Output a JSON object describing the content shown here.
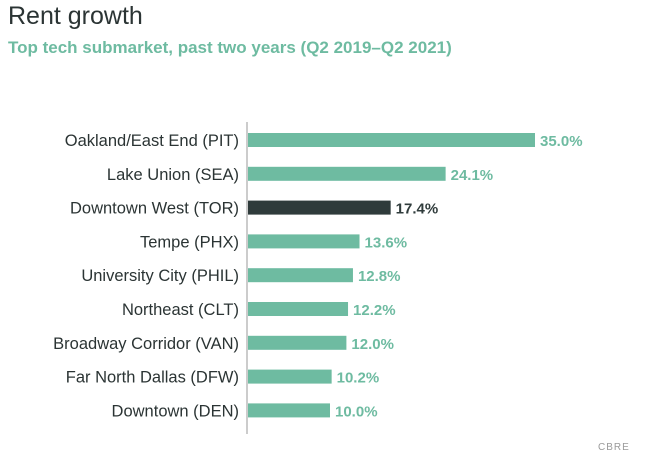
{
  "chart_data": {
    "type": "bar",
    "orientation": "horizontal",
    "title": "Rent growth",
    "subtitle": "Top tech submarket, past two years (Q2 2019–Q2 2021)",
    "categories": [
      "Oakland/East End (PIT)",
      "Lake Union (SEA)",
      "Downtown West (TOR)",
      "Tempe (PHX)",
      "University City (PHIL)",
      "Northeast (CLT)",
      "Broadway Corridor (VAN)",
      "Far North Dallas (DFW)",
      "Downtown (DEN)"
    ],
    "values": [
      35.0,
      24.1,
      17.4,
      13.6,
      12.8,
      12.2,
      12.0,
      10.2,
      10.0
    ],
    "value_labels": [
      "35.0%",
      "24.1%",
      "17.4%",
      "13.6%",
      "12.8%",
      "12.2%",
      "12.0%",
      "10.2%",
      "10.0%"
    ],
    "highlight_index": 2,
    "xlim": [
      0,
      35.0
    ],
    "grid": false,
    "legend": "none"
  },
  "colors": {
    "bar": "#6ebba1",
    "highlight": "#2f3b3b",
    "label_text": "#2b3434",
    "value_text": "#6ebba1",
    "highlight_value_text": "#2f3b3b",
    "axis": "#999999"
  },
  "source": "CBRE"
}
